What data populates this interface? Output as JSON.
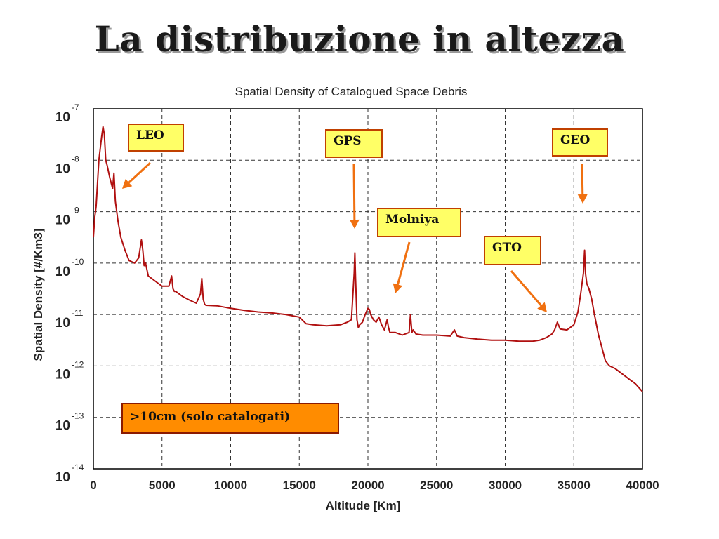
{
  "slide_title": "La distribuzione in altezza",
  "callouts": {
    "leo": "LEO",
    "gps": "GPS",
    "geo": "GEO",
    "molniya": "Molniya",
    "gto": "GTO"
  },
  "size_note": ">10cm (solo catalogati)",
  "colors": {
    "series": "#b01010",
    "arrow": "#f07010",
    "callout_fill": "#ffff66",
    "note_fill": "#ff8c00"
  },
  "chart_data": {
    "type": "line",
    "title": "Spatial Density of Catalogued Space Debris",
    "xlabel": "Altitude [Km]",
    "ylabel": "Spatial Density [#/Km3]",
    "xlim": [
      0,
      40000
    ],
    "ylim_exponent": [
      -14,
      -7
    ],
    "y_scale": "log10",
    "grid": true,
    "x_ticks": [
      "0",
      "5000",
      "10000",
      "15000",
      "20000",
      "25000",
      "30000",
      "35000",
      "40000"
    ],
    "y_tick_exponents": [
      "-14",
      "-13",
      "-12",
      "-11",
      "-10",
      "-9",
      "-8",
      "-7"
    ],
    "y_tick_base": "10",
    "series": [
      {
        "x": [
          0,
          100,
          200,
          400,
          600,
          700,
          800,
          900,
          1000,
          1200,
          1400,
          1500,
          1600,
          1800,
          2000,
          2300,
          2600,
          3000,
          3300,
          3500,
          3600,
          3700,
          3800,
          4000,
          4500,
          5000,
          5500,
          5700,
          5800,
          5900,
          6000,
          6500,
          7000,
          7500,
          7800,
          7900,
          8000,
          8100,
          8200,
          9000,
          10000,
          11000,
          12000,
          13000,
          14000,
          15000,
          15500,
          16000,
          17000,
          18000,
          18500,
          18800,
          19000,
          19050,
          19100,
          19200,
          19300,
          19400,
          19600,
          19800,
          20000,
          20100,
          20200,
          20400,
          20600,
          20800,
          21000,
          21200,
          21400,
          21500,
          21600,
          22000,
          22500,
          23000,
          23100,
          23200,
          23300,
          23500,
          24000,
          25000,
          26000,
          26300,
          26500,
          27000,
          28000,
          29000,
          30000,
          31000,
          32000,
          32500,
          33000,
          33400,
          33600,
          33800,
          34000,
          34500,
          35000,
          35300,
          35500,
          35700,
          35786,
          35850,
          35950,
          36100,
          36300,
          36500,
          36800,
          37000,
          37300,
          37600,
          38000,
          38500,
          39000,
          39500,
          40000
        ],
        "y_exp": [
          -9.5,
          -9.1,
          -8.9,
          -8.0,
          -7.55,
          -7.35,
          -7.5,
          -8.0,
          -8.1,
          -8.35,
          -8.55,
          -8.25,
          -8.8,
          -9.2,
          -9.5,
          -9.75,
          -9.95,
          -10.0,
          -9.9,
          -9.55,
          -9.75,
          -10.05,
          -10.0,
          -10.25,
          -10.35,
          -10.45,
          -10.45,
          -10.25,
          -10.5,
          -10.55,
          -10.55,
          -10.65,
          -10.72,
          -10.78,
          -10.6,
          -10.3,
          -10.7,
          -10.8,
          -10.82,
          -10.83,
          -10.88,
          -10.92,
          -10.95,
          -10.97,
          -11.0,
          -11.05,
          -11.18,
          -11.2,
          -11.22,
          -11.2,
          -11.15,
          -11.1,
          -10.2,
          -9.8,
          -10.3,
          -11.1,
          -11.25,
          -11.2,
          -11.15,
          -11.0,
          -10.88,
          -10.9,
          -11.0,
          -11.1,
          -11.15,
          -11.05,
          -11.2,
          -11.3,
          -11.1,
          -11.25,
          -11.35,
          -11.35,
          -11.4,
          -11.35,
          -11.0,
          -11.35,
          -11.3,
          -11.38,
          -11.4,
          -11.4,
          -11.42,
          -11.3,
          -11.42,
          -11.45,
          -11.48,
          -11.5,
          -11.5,
          -11.52,
          -11.52,
          -11.5,
          -11.45,
          -11.38,
          -11.3,
          -11.15,
          -11.28,
          -11.3,
          -11.2,
          -10.95,
          -10.6,
          -10.2,
          -9.75,
          -10.2,
          -10.4,
          -10.5,
          -10.7,
          -11.0,
          -11.4,
          -11.6,
          -11.9,
          -12.0,
          -12.05,
          -12.15,
          -12.25,
          -12.35,
          -12.5
        ]
      }
    ]
  }
}
